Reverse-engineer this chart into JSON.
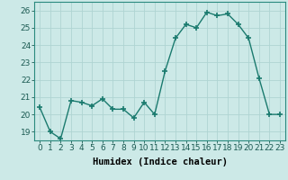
{
  "x": [
    0,
    1,
    2,
    3,
    4,
    5,
    6,
    7,
    8,
    9,
    10,
    11,
    12,
    13,
    14,
    15,
    16,
    17,
    18,
    19,
    20,
    21,
    22,
    23
  ],
  "y": [
    20.4,
    19.0,
    18.6,
    20.8,
    20.7,
    20.5,
    20.9,
    20.3,
    20.3,
    19.8,
    20.7,
    20.0,
    22.5,
    24.4,
    25.2,
    25.0,
    25.9,
    25.7,
    25.8,
    25.2,
    24.4,
    22.1,
    20.0,
    20.0
  ],
  "line_color": "#1a7a6e",
  "marker": "+",
  "marker_size": 4,
  "marker_lw": 1.2,
  "line_width": 1.0,
  "bg_color": "#cce9e7",
  "grid_color": "#afd4d2",
  "xlabel": "Humidex (Indice chaleur)",
  "ylim": [
    18.5,
    26.5
  ],
  "yticks": [
    19,
    20,
    21,
    22,
    23,
    24,
    25,
    26
  ],
  "xticks": [
    0,
    1,
    2,
    3,
    4,
    5,
    6,
    7,
    8,
    9,
    10,
    11,
    12,
    13,
    14,
    15,
    16,
    17,
    18,
    19,
    20,
    21,
    22,
    23
  ],
  "xlabel_fontsize": 7.5,
  "tick_fontsize": 6.5
}
